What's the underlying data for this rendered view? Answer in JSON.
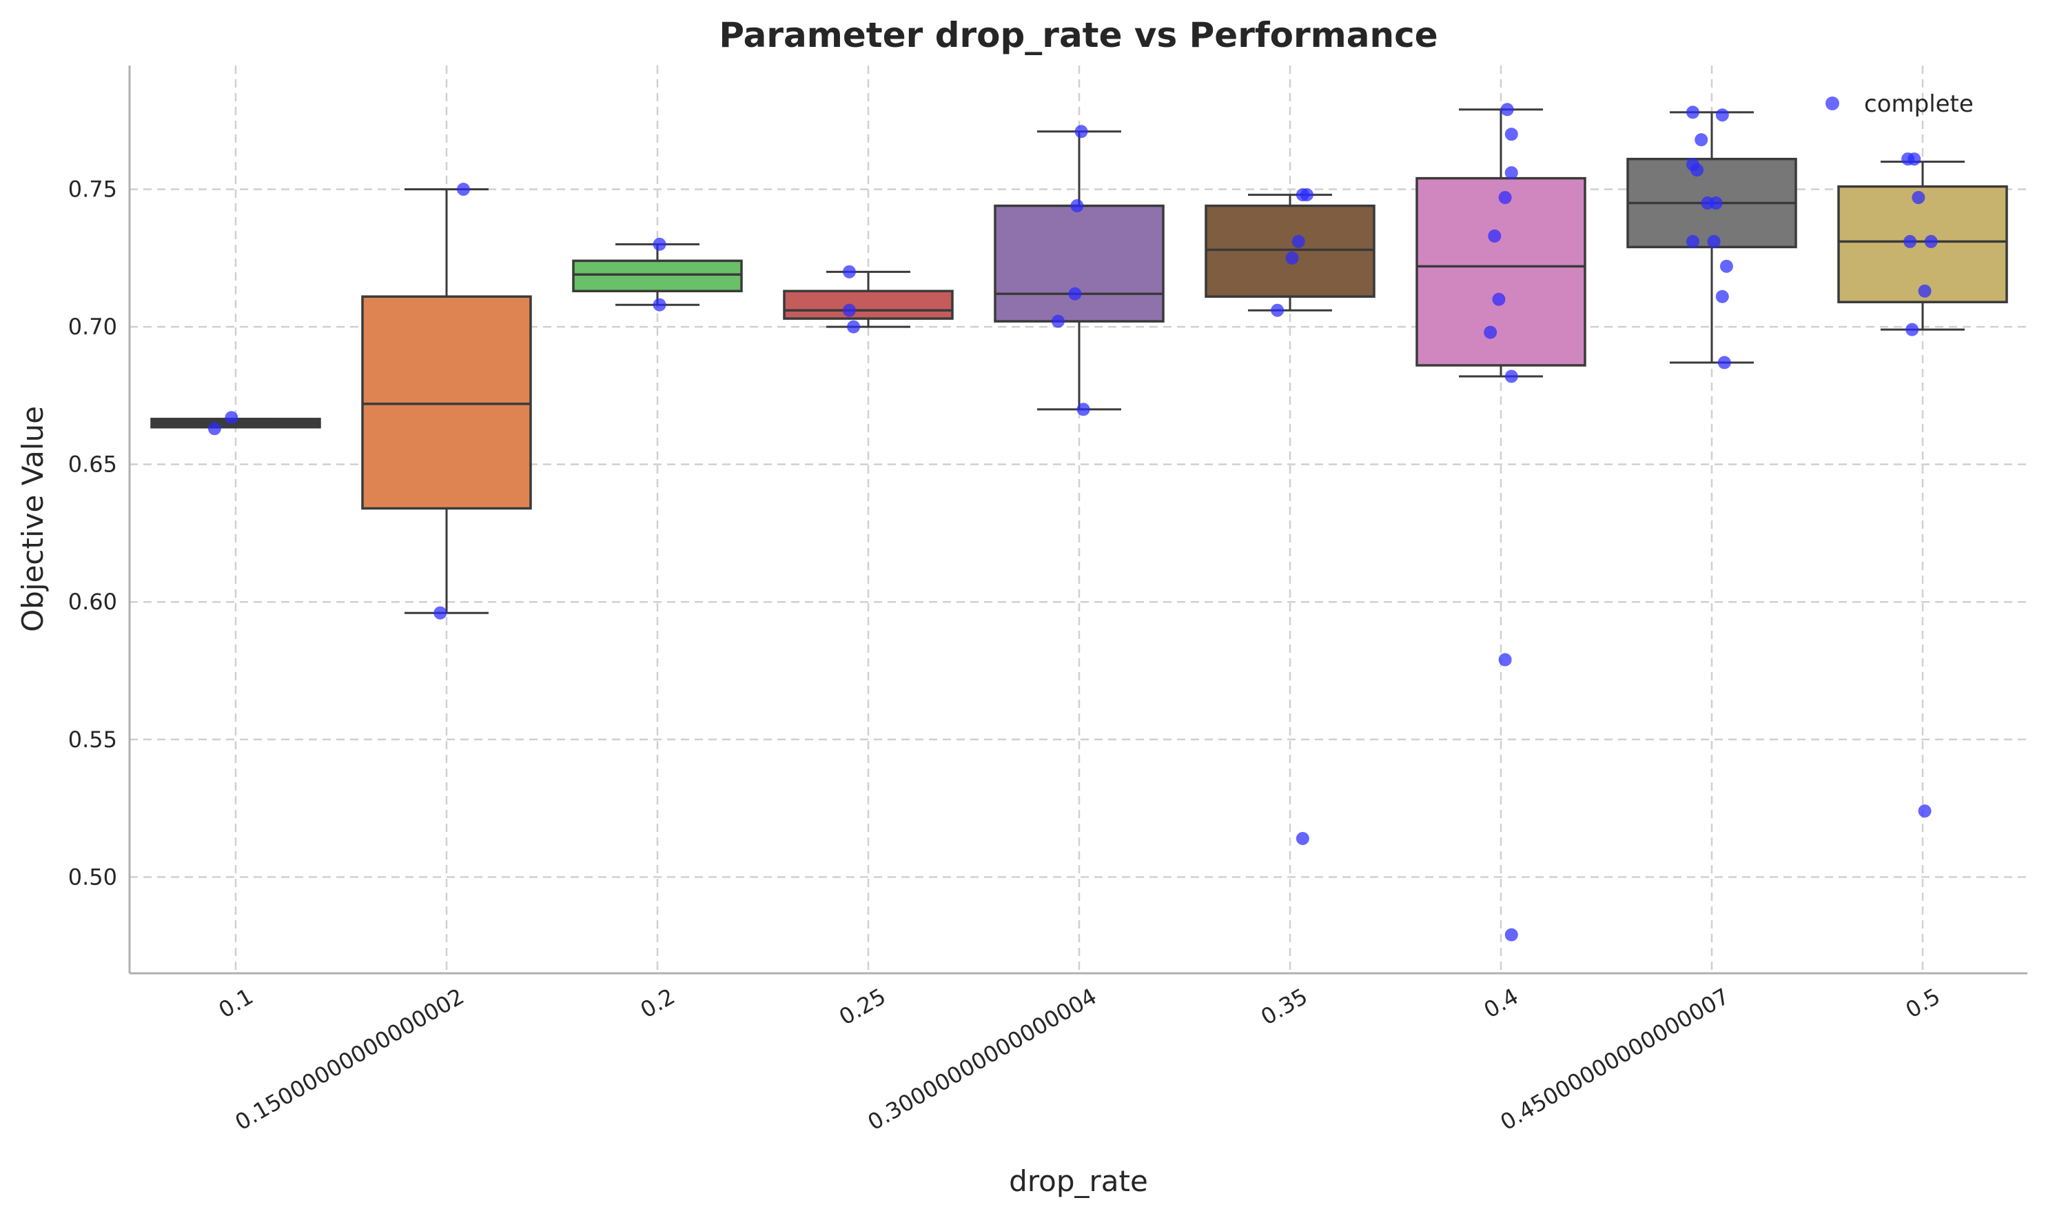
{
  "chart_data": {
    "type": "box",
    "title": "Parameter drop_rate vs Performance",
    "xlabel": "drop_rate",
    "ylabel": "Objective Value",
    "ylim": [
      0.465,
      0.795
    ],
    "yticks": [
      0.5,
      0.55,
      0.6,
      0.65,
      0.7,
      0.75
    ],
    "ytick_labels": [
      "0.50",
      "0.55",
      "0.60",
      "0.65",
      "0.70",
      "0.75"
    ],
    "grid": true,
    "categories": [
      "0.1",
      "0.15000000000000002",
      "0.2",
      "0.25",
      "0.30000000000000004",
      "0.35",
      "0.4",
      "0.45000000000000007",
      "0.5"
    ],
    "boxes": [
      {
        "category": "0.1",
        "color": "#3c3c3c",
        "q1": 0.6635,
        "median": 0.665,
        "q3": 0.6665,
        "whisker_low": 0.6635,
        "whisker_high": 0.6665
      },
      {
        "category": "0.15000000000000002",
        "color": "#dd8452",
        "q1": 0.634,
        "median": 0.672,
        "q3": 0.711,
        "whisker_low": 0.596,
        "whisker_high": 0.75
      },
      {
        "category": "0.2",
        "color": "#6abf69",
        "q1": 0.713,
        "median": 0.719,
        "q3": 0.724,
        "whisker_low": 0.708,
        "whisker_high": 0.73
      },
      {
        "category": "0.25",
        "color": "#c45c5c",
        "q1": 0.703,
        "median": 0.706,
        "q3": 0.713,
        "whisker_low": 0.7,
        "whisker_high": 0.72
      },
      {
        "category": "0.30000000000000004",
        "color": "#8f72ab",
        "q1": 0.702,
        "median": 0.712,
        "q3": 0.744,
        "whisker_low": 0.67,
        "whisker_high": 0.771
      },
      {
        "category": "0.35",
        "color": "#7f5d41",
        "q1": 0.711,
        "median": 0.728,
        "q3": 0.744,
        "whisker_low": 0.706,
        "whisker_high": 0.748
      },
      {
        "category": "0.4",
        "color": "#d087bf",
        "q1": 0.686,
        "median": 0.722,
        "q3": 0.754,
        "whisker_low": 0.682,
        "whisker_high": 0.779
      },
      {
        "category": "0.45000000000000007",
        "color": "#777777",
        "q1": 0.729,
        "median": 0.745,
        "q3": 0.761,
        "whisker_low": 0.687,
        "whisker_high": 0.778
      },
      {
        "category": "0.5",
        "color": "#c8b36e",
        "q1": 0.709,
        "median": 0.731,
        "q3": 0.751,
        "whisker_low": 0.699,
        "whisker_high": 0.76
      }
    ],
    "series": [
      {
        "name": "complete",
        "type": "scatter",
        "color": "#2a2aff",
        "points": [
          {
            "category": "0.1",
            "offset": -0.1,
            "y": 0.663
          },
          {
            "category": "0.1",
            "offset": -0.02,
            "y": 0.667
          },
          {
            "category": "0.15000000000000002",
            "offset": 0.08,
            "y": 0.75
          },
          {
            "category": "0.15000000000000002",
            "offset": -0.03,
            "y": 0.596
          },
          {
            "category": "0.2",
            "offset": 0.01,
            "y": 0.73
          },
          {
            "category": "0.2",
            "offset": 0.01,
            "y": 0.708
          },
          {
            "category": "0.25",
            "offset": -0.09,
            "y": 0.72
          },
          {
            "category": "0.25",
            "offset": -0.09,
            "y": 0.706
          },
          {
            "category": "0.25",
            "offset": -0.07,
            "y": 0.7
          },
          {
            "category": "0.30000000000000004",
            "offset": 0.01,
            "y": 0.771
          },
          {
            "category": "0.30000000000000004",
            "offset": -0.01,
            "y": 0.744
          },
          {
            "category": "0.30000000000000004",
            "offset": -0.02,
            "y": 0.712
          },
          {
            "category": "0.30000000000000004",
            "offset": -0.1,
            "y": 0.702
          },
          {
            "category": "0.30000000000000004",
            "offset": 0.02,
            "y": 0.67
          },
          {
            "category": "0.35",
            "offset": 0.06,
            "y": 0.748
          },
          {
            "category": "0.35",
            "offset": 0.08,
            "y": 0.748
          },
          {
            "category": "0.35",
            "offset": 0.04,
            "y": 0.731
          },
          {
            "category": "0.35",
            "offset": 0.01,
            "y": 0.725
          },
          {
            "category": "0.35",
            "offset": -0.06,
            "y": 0.706
          },
          {
            "category": "0.35",
            "offset": 0.06,
            "y": 0.514
          },
          {
            "category": "0.4",
            "offset": 0.03,
            "y": 0.779
          },
          {
            "category": "0.4",
            "offset": 0.05,
            "y": 0.77
          },
          {
            "category": "0.4",
            "offset": 0.05,
            "y": 0.756
          },
          {
            "category": "0.4",
            "offset": 0.02,
            "y": 0.747
          },
          {
            "category": "0.4",
            "offset": -0.03,
            "y": 0.733
          },
          {
            "category": "0.4",
            "offset": -0.01,
            "y": 0.71
          },
          {
            "category": "0.4",
            "offset": -0.05,
            "y": 0.698
          },
          {
            "category": "0.4",
            "offset": 0.05,
            "y": 0.682
          },
          {
            "category": "0.4",
            "offset": 0.02,
            "y": 0.579
          },
          {
            "category": "0.4",
            "offset": 0.05,
            "y": 0.479
          },
          {
            "category": "0.45000000000000007",
            "offset": -0.09,
            "y": 0.778
          },
          {
            "category": "0.45000000000000007",
            "offset": 0.05,
            "y": 0.777
          },
          {
            "category": "0.45000000000000007",
            "offset": -0.05,
            "y": 0.768
          },
          {
            "category": "0.45000000000000007",
            "offset": -0.09,
            "y": 0.759
          },
          {
            "category": "0.45000000000000007",
            "offset": -0.07,
            "y": 0.757
          },
          {
            "category": "0.45000000000000007",
            "offset": 0.02,
            "y": 0.745
          },
          {
            "category": "0.45000000000000007",
            "offset": -0.02,
            "y": 0.745
          },
          {
            "category": "0.45000000000000007",
            "offset": -0.09,
            "y": 0.731
          },
          {
            "category": "0.45000000000000007",
            "offset": 0.01,
            "y": 0.731
          },
          {
            "category": "0.45000000000000007",
            "offset": 0.07,
            "y": 0.722
          },
          {
            "category": "0.45000000000000007",
            "offset": 0.05,
            "y": 0.711
          },
          {
            "category": "0.45000000000000007",
            "offset": 0.06,
            "y": 0.687
          },
          {
            "category": "0.5",
            "offset": -0.07,
            "y": 0.761
          },
          {
            "category": "0.5",
            "offset": -0.04,
            "y": 0.761
          },
          {
            "category": "0.5",
            "offset": -0.02,
            "y": 0.747
          },
          {
            "category": "0.5",
            "offset": -0.06,
            "y": 0.731
          },
          {
            "category": "0.5",
            "offset": 0.04,
            "y": 0.731
          },
          {
            "category": "0.5",
            "offset": 0.01,
            "y": 0.713
          },
          {
            "category": "0.5",
            "offset": -0.05,
            "y": 0.699
          },
          {
            "category": "0.5",
            "offset": 0.01,
            "y": 0.524
          }
        ]
      }
    ],
    "legend": {
      "position": "top-right",
      "entries": [
        "complete"
      ]
    }
  }
}
